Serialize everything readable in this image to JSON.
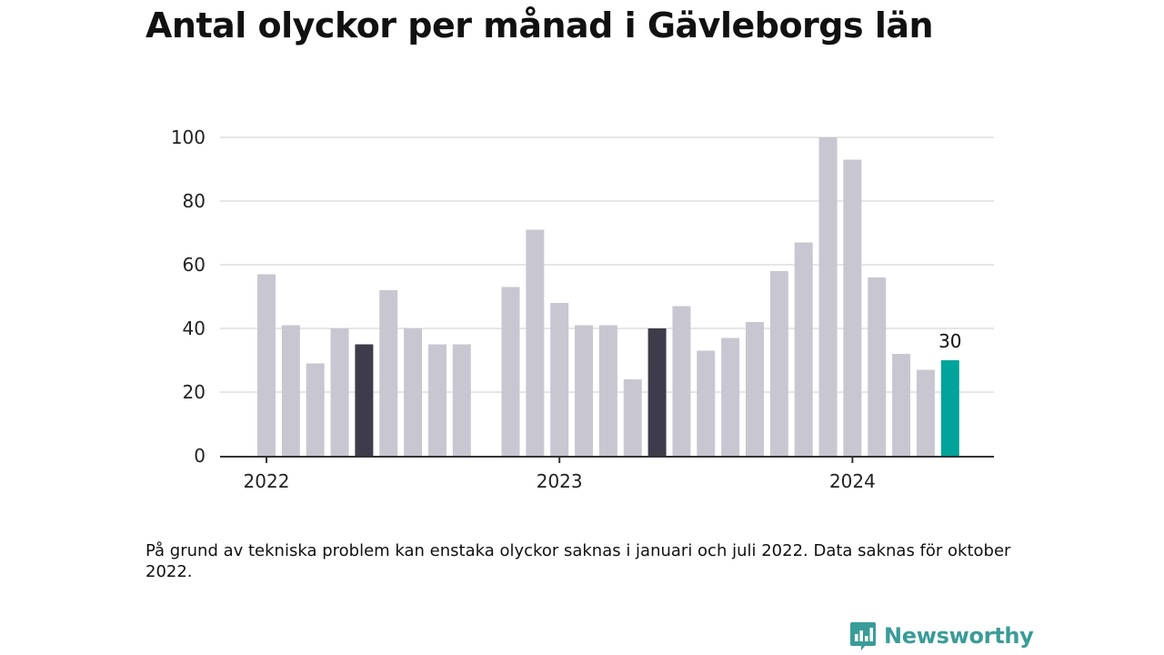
{
  "title": "Antal olyckor per månad i Gävleborgs län",
  "note": "På grund av tekniska problem kan enstaka olyckor saknas i januari och juli 2022. Data saknas för oktober 2022.",
  "brand": {
    "name": "Newsworthy",
    "icon": "newsworthy-logo-icon",
    "color": "#3a9c98"
  },
  "colors": {
    "default": "#c8c7d1",
    "highlight": "#3e3c4b",
    "latest": "#00a49a",
    "grid": "#dddddd",
    "axis": "#333333"
  },
  "chart_data": {
    "type": "bar",
    "title": "Antal olyckor per månad i Gävleborgs län",
    "xlabel": "",
    "ylabel": "",
    "ylim": [
      0,
      100
    ],
    "yticks": [
      0,
      20,
      40,
      60,
      80,
      100
    ],
    "grid": true,
    "x_tick_labels": [
      {
        "label": "2022",
        "month": "2022-01"
      },
      {
        "label": "2023",
        "month": "2023-01"
      },
      {
        "label": "2024",
        "month": "2024-01"
      }
    ],
    "months": [
      {
        "month": "2022-01",
        "value": 57,
        "style": "default"
      },
      {
        "month": "2022-02",
        "value": 41,
        "style": "default"
      },
      {
        "month": "2022-03",
        "value": 29,
        "style": "default"
      },
      {
        "month": "2022-04",
        "value": 40,
        "style": "default"
      },
      {
        "month": "2022-05",
        "value": 35,
        "style": "highlight"
      },
      {
        "month": "2022-06",
        "value": 52,
        "style": "default"
      },
      {
        "month": "2022-07",
        "value": 40,
        "style": "default"
      },
      {
        "month": "2022-08",
        "value": 35,
        "style": "default"
      },
      {
        "month": "2022-09",
        "value": 35,
        "style": "default"
      },
      {
        "month": "2022-10",
        "value": null,
        "style": "default"
      },
      {
        "month": "2022-11",
        "value": 53,
        "style": "default"
      },
      {
        "month": "2022-12",
        "value": 71,
        "style": "default"
      },
      {
        "month": "2023-01",
        "value": 48,
        "style": "default"
      },
      {
        "month": "2023-02",
        "value": 41,
        "style": "default"
      },
      {
        "month": "2023-03",
        "value": 41,
        "style": "default"
      },
      {
        "month": "2023-04",
        "value": 24,
        "style": "default"
      },
      {
        "month": "2023-05",
        "value": 40,
        "style": "highlight"
      },
      {
        "month": "2023-06",
        "value": 47,
        "style": "default"
      },
      {
        "month": "2023-07",
        "value": 33,
        "style": "default"
      },
      {
        "month": "2023-08",
        "value": 37,
        "style": "default"
      },
      {
        "month": "2023-09",
        "value": 42,
        "style": "default"
      },
      {
        "month": "2023-10",
        "value": 58,
        "style": "default"
      },
      {
        "month": "2023-11",
        "value": 67,
        "style": "default"
      },
      {
        "month": "2023-12",
        "value": 100,
        "style": "default"
      },
      {
        "month": "2024-01",
        "value": 93,
        "style": "default"
      },
      {
        "month": "2024-02",
        "value": 56,
        "style": "default"
      },
      {
        "month": "2024-03",
        "value": 32,
        "style": "default"
      },
      {
        "month": "2024-04",
        "value": 27,
        "style": "default"
      },
      {
        "month": "2024-05",
        "value": 30,
        "style": "latest",
        "label": "30"
      }
    ]
  }
}
